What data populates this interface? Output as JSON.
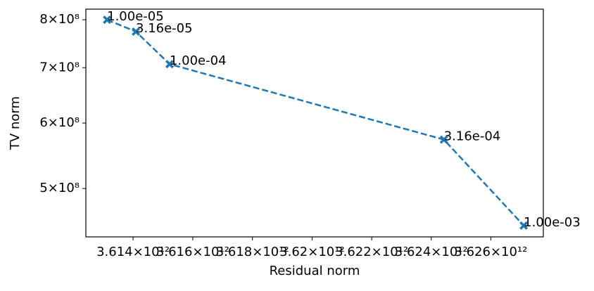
{
  "chart_data": {
    "type": "line",
    "xlabel": "Residual norm",
    "ylabel": "TV norm",
    "xscale": "log",
    "yscale": "log",
    "x": [
      3613130000000,
      3614094000000,
      3615224000000,
      3624424000000,
      3627106000000
    ],
    "series": [
      {
        "color": "#1f77b4",
        "linestyle": "dashed",
        "marker": "X",
        "values": [
          800000000,
          774000000,
          707000000,
          573000000,
          451000000
        ]
      }
    ],
    "annotations": [
      "1.00e-05",
      "3.16e-05",
      "1.00e-04",
      "3.16e-04",
      "1.00e-03"
    ],
    "xlim": [
      3612420000000,
      3627765000000
    ],
    "ylim": [
      437000000,
      824000000
    ],
    "xticks": [
      {
        "value": 3614000000000,
        "label": "3.614×10¹²"
      },
      {
        "value": 3616000000000,
        "label": "3.616×10¹²"
      },
      {
        "value": 3618000000000,
        "label": "3.618×10¹²"
      },
      {
        "value": 3620000000000,
        "label": "3.62×10¹²"
      },
      {
        "value": 3622000000000,
        "label": "3.622×10¹²"
      },
      {
        "value": 3624000000000,
        "label": "3.624×10¹²"
      },
      {
        "value": 3626000000000,
        "label": "3.626×10¹²"
      }
    ],
    "yticks": [
      {
        "value": 500000000,
        "label": "5×10⁸"
      },
      {
        "value": 600000000,
        "label": "6×10⁸"
      },
      {
        "value": 700000000,
        "label": "7×10⁸"
      },
      {
        "value": 800000000,
        "label": "8×10⁸"
      }
    ],
    "grid": false
  }
}
